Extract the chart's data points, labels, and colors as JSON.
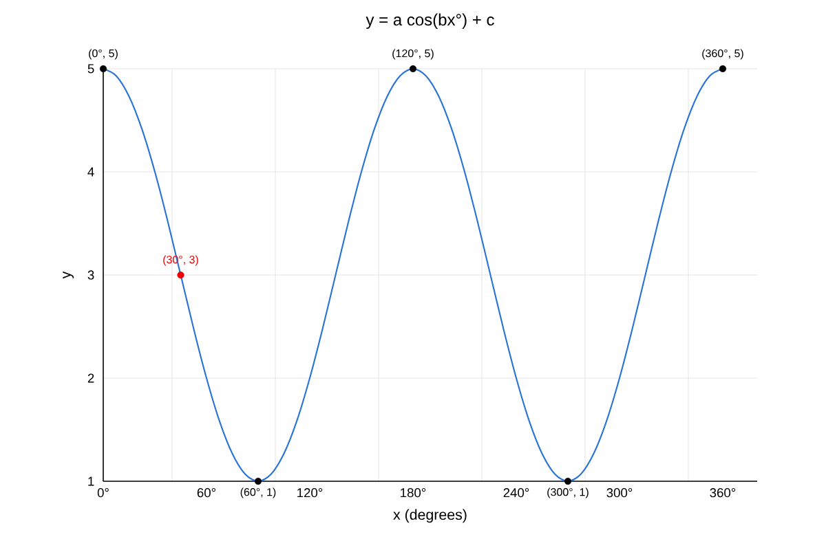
{
  "chart_data": {
    "type": "line",
    "title": "y = a cos(bx°) + c",
    "xlabel": "x (degrees)",
    "ylabel": "y",
    "xlim": [
      0,
      380
    ],
    "ylim": [
      1,
      5
    ],
    "xticks": [
      {
        "value": 0,
        "label": "0°"
      },
      {
        "value": 60,
        "label": "60°"
      },
      {
        "value": 120,
        "label": "120°"
      },
      {
        "value": 180,
        "label": "180°"
      },
      {
        "value": 240,
        "label": "240°"
      },
      {
        "value": 300,
        "label": "300°"
      },
      {
        "value": 360,
        "label": "360°"
      },
      {
        "value": 40,
        "label": null
      },
      {
        "value": 100,
        "label": null
      },
      {
        "value": 160,
        "label": null
      },
      {
        "value": 220,
        "label": null
      },
      {
        "value": 280,
        "label": null
      },
      {
        "value": 340,
        "label": null
      }
    ],
    "yticks": [
      1,
      2,
      3,
      4,
      5
    ],
    "grid": true,
    "series": [
      {
        "type": "line",
        "color": "#2a74d8",
        "marker": "none",
        "x": [
          0,
          7.5,
          15,
          22.5,
          30,
          37.5,
          45,
          52.5,
          60,
          67.5,
          75,
          82.5,
          90,
          97.5,
          105,
          112.5,
          120,
          127.5,
          135,
          142.5,
          150,
          157.5,
          165,
          172.5,
          180,
          187.5,
          195,
          202.5,
          210,
          217.5,
          225,
          232.5,
          240,
          247.5,
          255,
          262.5,
          270,
          277.5,
          285,
          292.5,
          300,
          307.5,
          315,
          322.5,
          330,
          337.5,
          345,
          352.5,
          360
        ],
        "values": [
          5,
          4.932,
          4.732,
          4.414,
          4,
          3.518,
          null,
          2.482,
          2,
          1.586,
          1.268,
          1.068,
          1,
          1.068,
          1.268,
          1.586,
          2,
          2.482,
          3,
          3.518,
          4,
          4.414,
          4.732,
          4.932,
          5,
          4.932,
          4.732,
          4.414,
          4,
          3.518,
          3,
          2.482,
          2,
          1.586,
          1.268,
          1.068,
          1,
          1.068,
          1.268,
          1.586,
          2,
          2.482,
          3,
          3.518,
          4,
          4.414,
          4.732,
          4.932,
          5
        ]
      },
      {
        "type": "scatter",
        "color": "#000000",
        "marker": "circle",
        "x": [
          0,
          90,
          180,
          270,
          360
        ],
        "values": [
          5,
          1,
          5,
          1,
          5
        ],
        "value_labels": [
          "(0°, 5)",
          "(60°, 1)",
          "(120°, 5)",
          "(300°, 1)",
          "(360°, 5)"
        ]
      },
      {
        "type": "scatter",
        "color": "#ee0000",
        "marker": "circle",
        "x": [
          45
        ],
        "values": [
          3
        ],
        "value_labels": [
          "(30°, 3)"
        ]
      }
    ]
  }
}
